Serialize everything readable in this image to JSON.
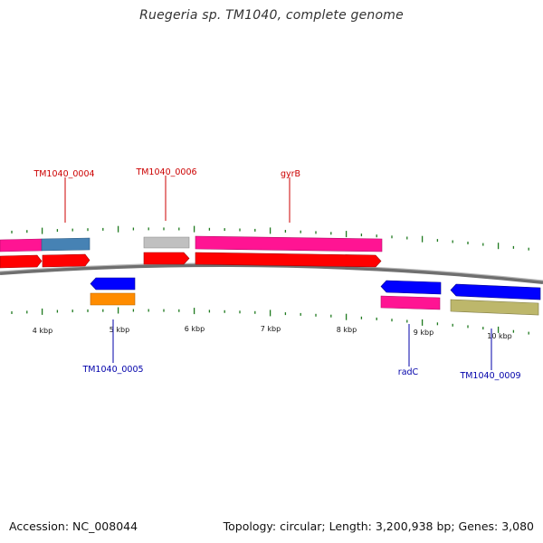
{
  "title": "Ruegeria sp. TM1040, complete genome",
  "accession": "Accession: NC_008044",
  "summary": "Topology: circular; Length: 3,200,938 bp; Genes: 3,080",
  "colors": {
    "background": "#ffffff",
    "backbone": "#7a7a7a",
    "tick": "#1f7a1f",
    "forward_label": "#cc0000",
    "reverse_label": "#0000aa",
    "cds_red": "#ff0000",
    "gene_pink": "#ff1493",
    "gene_steelblue": "#4682b4",
    "gene_grey": "#c0c0c0",
    "cds_blue": "#0000ff",
    "gene_orange": "#ff8c00",
    "gene_khaki": "#bdb76b"
  },
  "scale_labels": [
    "4 kbp",
    "5 kbp",
    "6 kbp",
    "7 kbp",
    "8 kbp",
    "9 kbp",
    "10 kbp"
  ],
  "features": [
    {
      "label": "TM1040_0004",
      "strand": "forward"
    },
    {
      "label": "TM1040_0006",
      "strand": "forward"
    },
    {
      "label": "gyrB",
      "strand": "forward"
    },
    {
      "label": "TM1040_0005",
      "strand": "reverse"
    },
    {
      "label": "radC",
      "strand": "reverse"
    },
    {
      "label": "TM1040_0009",
      "strand": "reverse"
    }
  ]
}
